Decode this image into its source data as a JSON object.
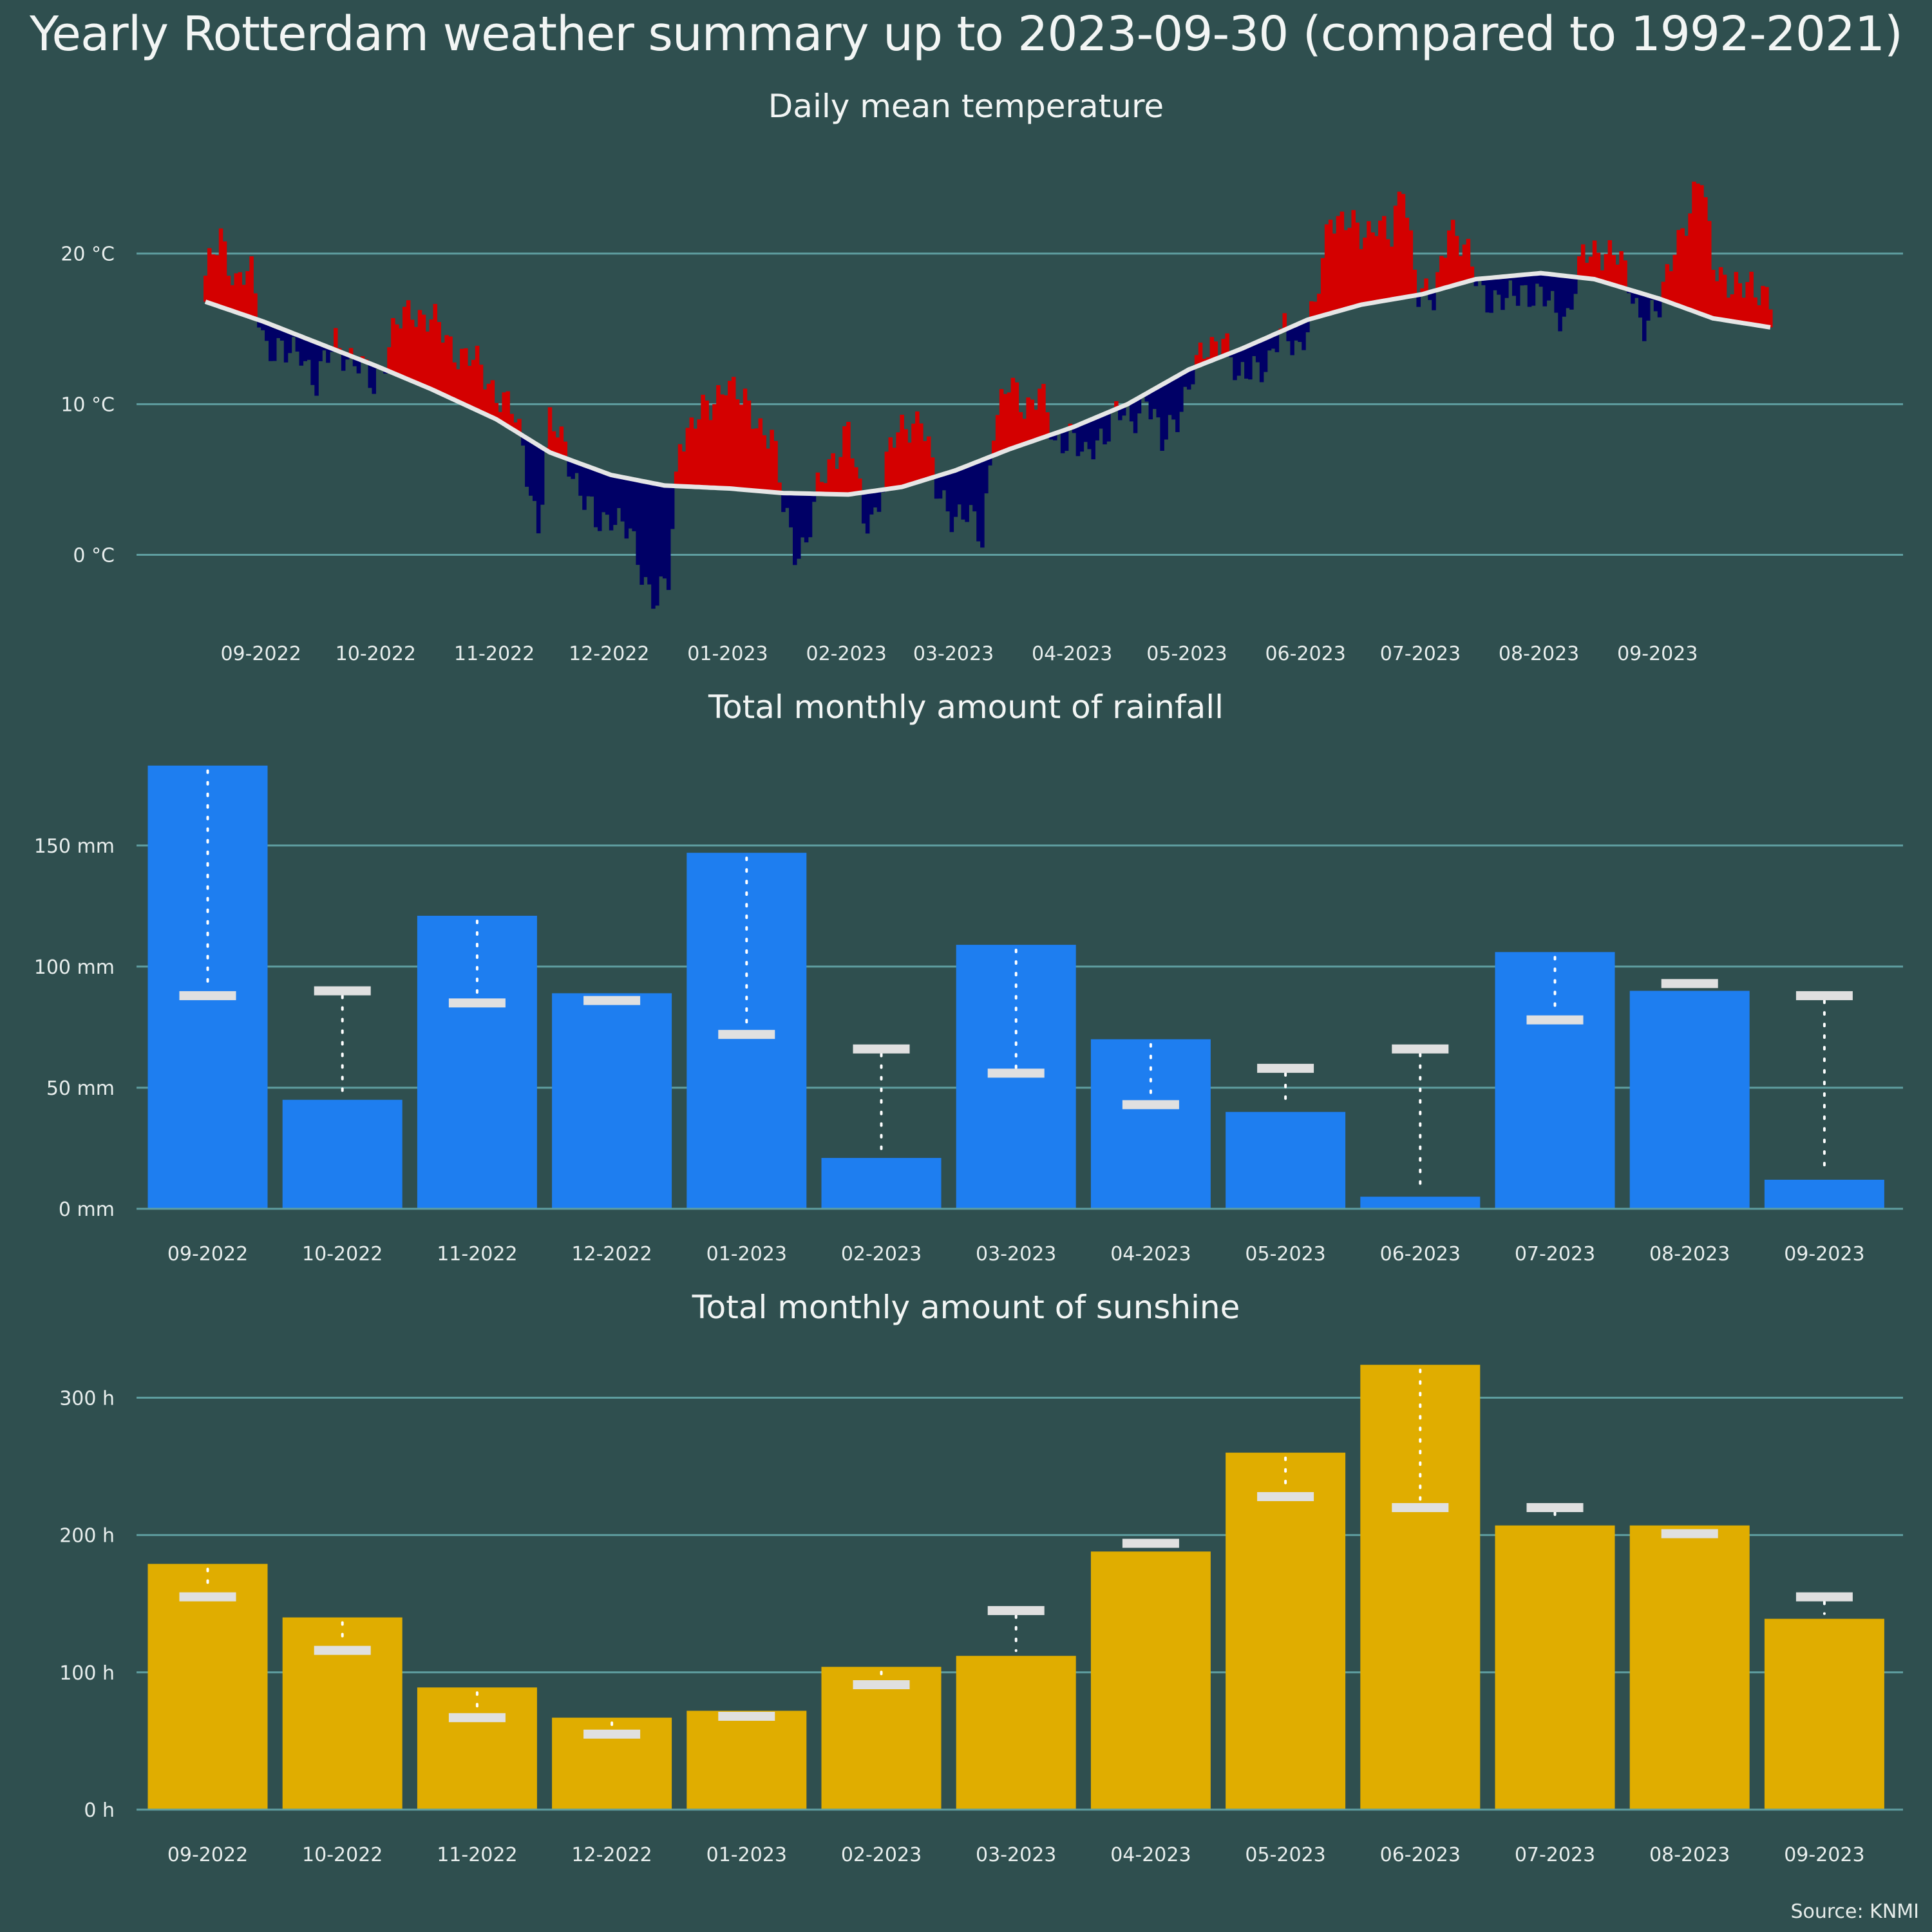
{
  "title": "Yearly Rotterdam weather summary up to 2023-09-30 (compared to 1992-2021)",
  "source": "Source: KNMI",
  "colors": {
    "background": "#2f4f4f",
    "grid": "#5f9ea0",
    "above_normal": "#d40000",
    "below_normal": "#000066",
    "normal_line": "#e6e6e6",
    "rain": "#1e7ef0",
    "sun": "#e0ad00",
    "marker": "#e0e0e0"
  },
  "chart_data": [
    {
      "type": "bar",
      "title": "Daily mean temperature",
      "unit": "°C",
      "y_ticks": [
        0,
        10,
        20
      ],
      "y_tick_labels": [
        "0 °C",
        "10 °C",
        "20 °C"
      ],
      "ylim": [
        -4,
        27
      ],
      "x_tick_labels": [
        "09-2022",
        "10-2022",
        "11-2022",
        "12-2022",
        "01-2023",
        "02-2023",
        "03-2023",
        "04-2023",
        "05-2023",
        "06-2023",
        "07-2023",
        "08-2023",
        "09-2023"
      ],
      "x_start": "2022-08-17",
      "x_end": "2023-09-30",
      "normal_anchors": [
        [
          "2022-08-17",
          16.8
        ],
        [
          "2022-09-01",
          15.5
        ],
        [
          "2022-10-01",
          12.5
        ],
        [
          "2022-10-15",
          11.0
        ],
        [
          "2022-11-01",
          9.0
        ],
        [
          "2022-11-15",
          6.8
        ],
        [
          "2022-12-01",
          5.3
        ],
        [
          "2022-12-15",
          4.6
        ],
        [
          "2023-01-01",
          4.4
        ],
        [
          "2023-01-15",
          4.1
        ],
        [
          "2023-02-01",
          4.0
        ],
        [
          "2023-02-15",
          4.5
        ],
        [
          "2023-03-01",
          5.6
        ],
        [
          "2023-03-15",
          7.0
        ],
        [
          "2023-04-01",
          8.5
        ],
        [
          "2023-04-15",
          10.0
        ],
        [
          "2023-05-01",
          12.3
        ],
        [
          "2023-05-15",
          13.7
        ],
        [
          "2023-06-01",
          15.6
        ],
        [
          "2023-06-15",
          16.6
        ],
        [
          "2023-07-01",
          17.3
        ],
        [
          "2023-07-15",
          18.3
        ],
        [
          "2023-08-01",
          18.7
        ],
        [
          "2023-08-15",
          18.3
        ],
        [
          "2023-09-01",
          17.0
        ],
        [
          "2023-09-15",
          15.7
        ],
        [
          "2023-09-30",
          15.1
        ]
      ],
      "daily_anchors": [
        [
          "2022-08-17",
          18.0
        ],
        [
          "2022-08-21",
          21.5
        ],
        [
          "2022-08-25",
          18.0
        ],
        [
          "2022-08-29",
          18.5
        ],
        [
          "2022-09-02",
          14.0
        ],
        [
          "2022-09-07",
          13.0
        ],
        [
          "2022-09-11",
          14.0
        ],
        [
          "2022-09-15",
          11.0
        ],
        [
          "2022-09-20",
          14.5
        ],
        [
          "2022-09-25",
          12.5
        ],
        [
          "2022-09-30",
          11.5
        ],
        [
          "2022-10-05",
          14.5
        ],
        [
          "2022-10-10",
          16.5
        ],
        [
          "2022-10-15",
          15.5
        ],
        [
          "2022-10-20",
          14.0
        ],
        [
          "2022-10-25",
          13.0
        ],
        [
          "2022-11-01",
          11.0
        ],
        [
          "2022-11-05",
          9.5
        ],
        [
          "2022-11-08",
          7.0
        ],
        [
          "2022-11-12",
          2.0
        ],
        [
          "2022-11-15",
          8.5
        ],
        [
          "2022-11-19",
          7.5
        ],
        [
          "2022-11-23",
          4.0
        ],
        [
          "2022-11-27",
          2.0
        ],
        [
          "2022-12-01",
          3.0
        ],
        [
          "2022-12-06",
          1.0
        ],
        [
          "2022-12-10",
          -1.5
        ],
        [
          "2022-12-13",
          -3.0
        ],
        [
          "2022-12-16",
          -2.0
        ],
        [
          "2022-12-19",
          8.0
        ],
        [
          "2022-12-23",
          9.0
        ],
        [
          "2022-12-27",
          9.5
        ],
        [
          "2022-12-31",
          12.0
        ],
        [
          "2023-01-04",
          10.0
        ],
        [
          "2023-01-08",
          9.0
        ],
        [
          "2023-01-12",
          8.0
        ],
        [
          "2023-01-15",
          3.0
        ],
        [
          "2023-01-18",
          0.5
        ],
        [
          "2023-01-21",
          1.0
        ],
        [
          "2023-01-24",
          4.0
        ],
        [
          "2023-01-28",
          6.5
        ],
        [
          "2023-02-01",
          8.5
        ],
        [
          "2023-02-05",
          2.0
        ],
        [
          "2023-02-08",
          3.0
        ],
        [
          "2023-02-12",
          7.0
        ],
        [
          "2023-02-16",
          8.5
        ],
        [
          "2023-02-20",
          9.5
        ],
        [
          "2023-02-24",
          4.0
        ],
        [
          "2023-02-28",
          3.0
        ],
        [
          "2023-03-04",
          2.5
        ],
        [
          "2023-03-08",
          1.0
        ],
        [
          "2023-03-11",
          9.0
        ],
        [
          "2023-03-15",
          11.0
        ],
        [
          "2023-03-19",
          10.0
        ],
        [
          "2023-03-23",
          11.0
        ],
        [
          "2023-03-27",
          7.0
        ],
        [
          "2023-03-31",
          8.5
        ],
        [
          "2023-04-04",
          6.0
        ],
        [
          "2023-04-08",
          8.0
        ],
        [
          "2023-04-12",
          9.5
        ],
        [
          "2023-04-16",
          8.5
        ],
        [
          "2023-04-20",
          11.0
        ],
        [
          "2023-04-24",
          7.0
        ],
        [
          "2023-04-28",
          9.5
        ],
        [
          "2023-05-02",
          12.0
        ],
        [
          "2023-05-06",
          13.5
        ],
        [
          "2023-05-10",
          15.0
        ],
        [
          "2023-05-14",
          11.0
        ],
        [
          "2023-05-18",
          13.0
        ],
        [
          "2023-05-22",
          12.5
        ],
        [
          "2023-05-26",
          15.0
        ],
        [
          "2023-05-30",
          14.0
        ],
        [
          "2023-06-03",
          16.0
        ],
        [
          "2023-06-07",
          23.0
        ],
        [
          "2023-06-11",
          22.0
        ],
        [
          "2023-06-15",
          21.0
        ],
        [
          "2023-06-19",
          22.5
        ],
        [
          "2023-06-23",
          20.5
        ],
        [
          "2023-06-26",
          25.0
        ],
        [
          "2023-06-30",
          17.5
        ],
        [
          "2023-07-04",
          16.5
        ],
        [
          "2023-07-08",
          22.5
        ],
        [
          "2023-07-11",
          20.5
        ],
        [
          "2023-07-15",
          18.5
        ],
        [
          "2023-07-19",
          17.0
        ],
        [
          "2023-07-23",
          16.5
        ],
        [
          "2023-07-27",
          18.0
        ],
        [
          "2023-07-31",
          17.0
        ],
        [
          "2023-08-04",
          16.5
        ],
        [
          "2023-08-08",
          16.0
        ],
        [
          "2023-08-12",
          19.5
        ],
        [
          "2023-08-16",
          20.5
        ],
        [
          "2023-08-20",
          20.0
        ],
        [
          "2023-08-24",
          18.0
        ],
        [
          "2023-08-28",
          15.5
        ],
        [
          "2023-09-01",
          16.0
        ],
        [
          "2023-09-05",
          21.0
        ],
        [
          "2023-09-09",
          22.5
        ],
        [
          "2023-09-12",
          25.0
        ],
        [
          "2023-09-15",
          20.0
        ],
        [
          "2023-09-20",
          17.0
        ],
        [
          "2023-09-25",
          18.5
        ],
        [
          "2023-09-30",
          16.5
        ]
      ]
    },
    {
      "type": "bar",
      "title": "Total monthly amount of rainfall",
      "unit": "mm",
      "categories": [
        "09-2022",
        "10-2022",
        "11-2022",
        "12-2022",
        "01-2023",
        "02-2023",
        "03-2023",
        "04-2023",
        "05-2023",
        "06-2023",
        "07-2023",
        "08-2023",
        "09-2023"
      ],
      "values": [
        183,
        45,
        121,
        89,
        147,
        21,
        109,
        70,
        40,
        5,
        106,
        90,
        12
      ],
      "normals": [
        88,
        90,
        85,
        86,
        72,
        66,
        56,
        43,
        58,
        66,
        78,
        93,
        88
      ],
      "y_ticks": [
        0,
        50,
        100,
        150
      ],
      "y_tick_labels": [
        "0 mm",
        "50 mm",
        "100 mm",
        "150 mm"
      ],
      "ylim": [
        0,
        188
      ]
    },
    {
      "type": "bar",
      "title": "Total monthly amount of sunshine",
      "unit": "h",
      "categories": [
        "09-2022",
        "10-2022",
        "11-2022",
        "12-2022",
        "01-2023",
        "02-2023",
        "03-2023",
        "04-2023",
        "05-2023",
        "06-2023",
        "07-2023",
        "08-2023",
        "09-2023"
      ],
      "values": [
        179,
        140,
        89,
        67,
        72,
        104,
        112,
        188,
        260,
        324,
        207,
        207,
        139
      ],
      "normals": [
        155,
        116,
        67,
        55,
        68,
        91,
        145,
        194,
        228,
        220,
        220,
        201,
        155
      ],
      "y_ticks": [
        0,
        100,
        200,
        300
      ],
      "y_tick_labels": [
        "0 h",
        "100 h",
        "200 h",
        "300 h"
      ],
      "ylim": [
        0,
        326
      ]
    }
  ]
}
